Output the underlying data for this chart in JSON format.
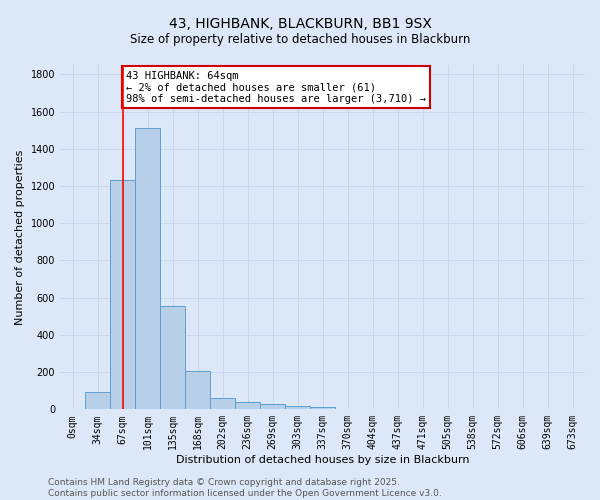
{
  "title": "43, HIGHBANK, BLACKBURN, BB1 9SX",
  "subtitle": "Size of property relative to detached houses in Blackburn",
  "xlabel": "Distribution of detached houses by size in Blackburn",
  "ylabel": "Number of detached properties",
  "categories": [
    "0sqm",
    "34sqm",
    "67sqm",
    "101sqm",
    "135sqm",
    "168sqm",
    "202sqm",
    "236sqm",
    "269sqm",
    "303sqm",
    "337sqm",
    "370sqm",
    "404sqm",
    "437sqm",
    "471sqm",
    "505sqm",
    "538sqm",
    "572sqm",
    "606sqm",
    "639sqm",
    "673sqm"
  ],
  "values": [
    0,
    95,
    1230,
    1510,
    555,
    205,
    60,
    42,
    30,
    20,
    10,
    3,
    0,
    0,
    0,
    0,
    0,
    0,
    0,
    0,
    0
  ],
  "bar_color": "#b8cfe8",
  "bar_edge_color": "#5a9fd4",
  "grid_color": "#c8d8ec",
  "bg_color": "#dce8f8",
  "red_line_x": 2,
  "annotation_line1": "43 HIGHBANK: 64sqm",
  "annotation_line2": "← 2% of detached houses are smaller (61)",
  "annotation_line3": "98% of semi-detached houses are larger (3,710) →",
  "annotation_box_color": "#ffffff",
  "annotation_edge_color": "#cc0000",
  "ylim": [
    0,
    1850
  ],
  "yticks": [
    0,
    200,
    400,
    600,
    800,
    1000,
    1200,
    1400,
    1600,
    1800
  ],
  "footer_line1": "Contains HM Land Registry data © Crown copyright and database right 2025.",
  "footer_line2": "Contains public sector information licensed under the Open Government Licence v3.0.",
  "title_fontsize": 10,
  "subtitle_fontsize": 8.5,
  "axis_label_fontsize": 8,
  "tick_fontsize": 7,
  "annotation_fontsize": 7.5,
  "footer_fontsize": 6.5
}
